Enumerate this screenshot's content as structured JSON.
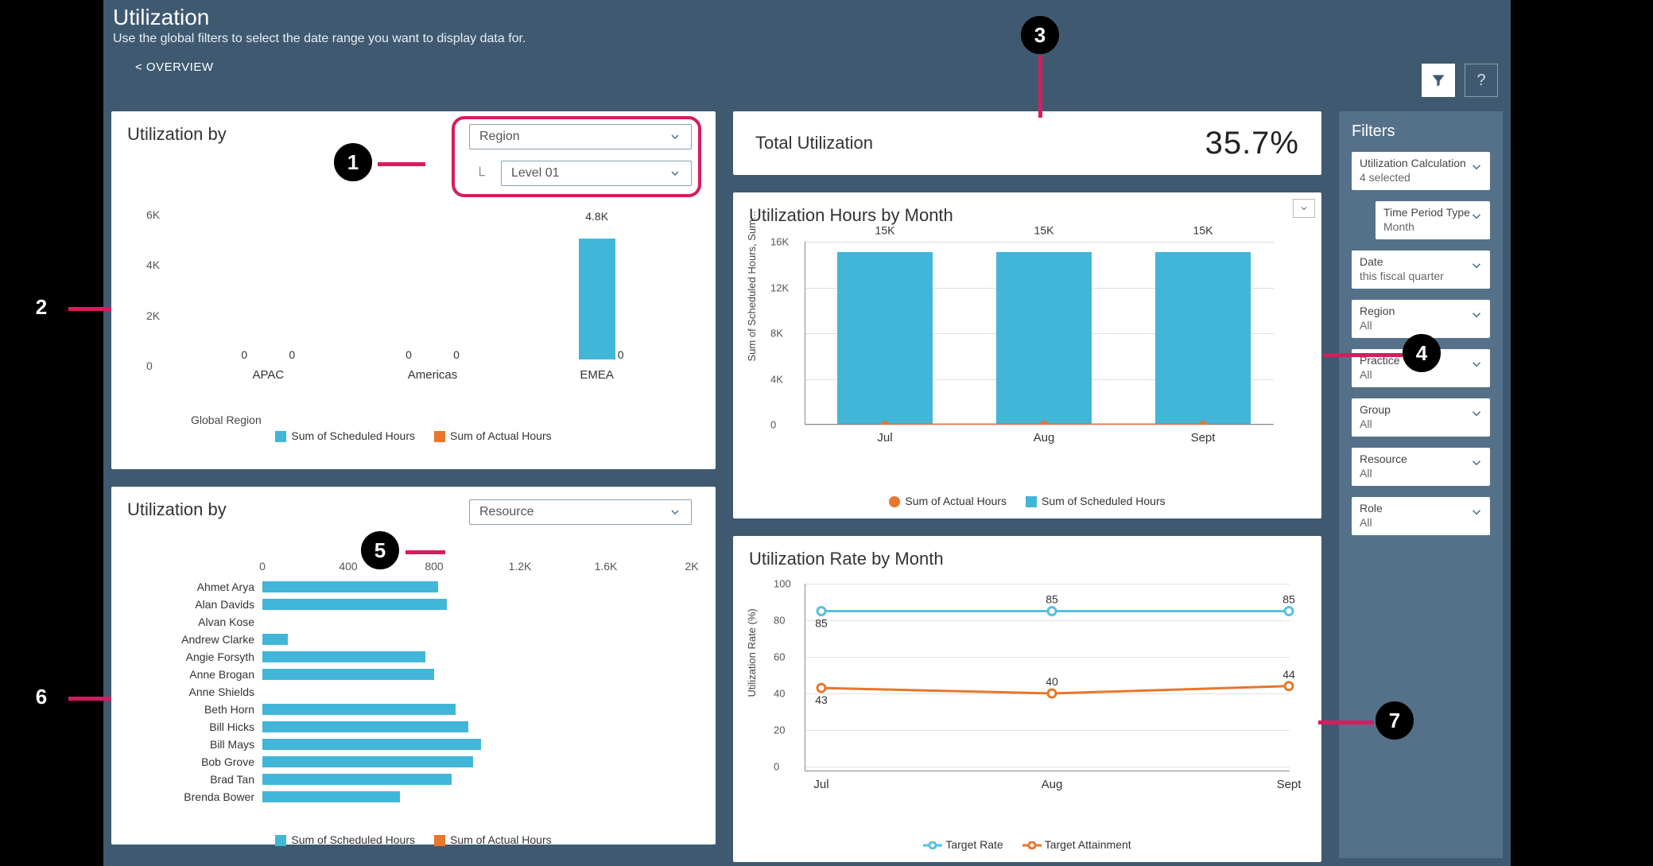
{
  "header": {
    "title": "Utilization",
    "subtitle": "Use the global filters to select the date range you want to display data for.",
    "overview_link": "< OVERVIEW"
  },
  "colors": {
    "dashboard_bg": "#3f5a70",
    "filter_panel_bg": "#55718a",
    "card_bg": "#ffffff",
    "series_scheduled": "#41b6d9",
    "series_actual": "#e8762c",
    "highlight": "#d81b60",
    "grid": "#dddddd",
    "axis": "#888888",
    "text": "#333333"
  },
  "region_card": {
    "title": "Utilization by",
    "dropdown_primary": "Region",
    "dropdown_secondary": "Level 01",
    "chart": {
      "type": "bar",
      "y_label_suffix": "K",
      "ylim": [
        0,
        6
      ],
      "ytick_step": 2,
      "categories": [
        "APAC",
        "Americas",
        "EMEA"
      ],
      "pairs_per_category": 2,
      "values_scheduled": [
        0,
        0,
        4.8
      ],
      "values_actual": [
        0,
        0,
        0
      ],
      "bar_label": "4.8K",
      "x_axis_label": "Global Region"
    },
    "legend": [
      "Sum of Scheduled Hours",
      "Sum of Actual Hours"
    ]
  },
  "resource_card": {
    "title": "Utilization by",
    "dropdown": "Resource",
    "chart": {
      "type": "hbar",
      "xlim": [
        0,
        2000
      ],
      "xticks": [
        0,
        400,
        800,
        "1.2K",
        "1.6K",
        "2K"
      ],
      "xtick_vals": [
        0,
        400,
        800,
        1200,
        1600,
        2000
      ],
      "rows": [
        {
          "name": "Ahmet Arya",
          "val": 820
        },
        {
          "name": "Alan Davids",
          "val": 860
        },
        {
          "name": "Alvan Kose",
          "val": 0
        },
        {
          "name": "Andrew Clarke",
          "val": 120
        },
        {
          "name": "Angie Forsyth",
          "val": 760
        },
        {
          "name": "Anne Brogan",
          "val": 800
        },
        {
          "name": "Anne Shields",
          "val": 0
        },
        {
          "name": "Beth Horn",
          "val": 900
        },
        {
          "name": "Bill Hicks",
          "val": 960
        },
        {
          "name": "Bill Mays",
          "val": 1020
        },
        {
          "name": "Bob Grove",
          "val": 980
        },
        {
          "name": "Brad Tan",
          "val": 880
        },
        {
          "name": "Brenda Bower",
          "val": 640
        }
      ]
    },
    "legend": [
      "Sum of Scheduled Hours",
      "Sum of Actual Hours"
    ]
  },
  "kpi": {
    "label": "Total Utilization",
    "value": "35.7%"
  },
  "monthly_card": {
    "title": "Utilization Hours by Month",
    "chart": {
      "type": "bar+line",
      "y_axis_label": "Sum of Scheduled Hours, Sum...",
      "ylim": [
        0,
        16
      ],
      "yticks": [
        "0",
        "4K",
        "8K",
        "12K",
        "16K"
      ],
      "ytick_vals": [
        0,
        4,
        8,
        12,
        16
      ],
      "categories": [
        "Jul",
        "Aug",
        "Sept"
      ],
      "bar_values": [
        15,
        15,
        15
      ],
      "bar_labels": [
        "15K",
        "15K",
        "15K"
      ],
      "line_values": [
        0,
        0,
        0
      ]
    },
    "legend": [
      "Sum of Actual Hours",
      "Sum of Scheduled Hours"
    ]
  },
  "rate_card": {
    "title": "Utilization Rate by Month",
    "chart": {
      "type": "line",
      "y_axis_label": "Utilization Rate (%)",
      "ylim": [
        0,
        100
      ],
      "ytick_step": 20,
      "categories": [
        "Jul",
        "Aug",
        "Sept"
      ],
      "target_rate": [
        85,
        85,
        85
      ],
      "target_attainment": [
        43,
        40,
        44
      ]
    },
    "legend": [
      "Target Rate",
      "Target Attainment"
    ]
  },
  "filters_panel": {
    "title": "Filters",
    "items": [
      {
        "title": "Utilization Calculation",
        "value": "4 selected",
        "indent": false
      },
      {
        "title": "Time Period Type",
        "value": "Month",
        "indent": true
      },
      {
        "title": "Date",
        "value": "this fiscal quarter",
        "indent": false
      },
      {
        "title": "Region",
        "value": "All",
        "indent": false
      },
      {
        "title": "Practice",
        "value": "All",
        "indent": false
      },
      {
        "title": "Group",
        "value": "All",
        "indent": false
      },
      {
        "title": "Resource",
        "value": "All",
        "indent": false
      },
      {
        "title": "Role",
        "value": "All",
        "indent": false
      }
    ]
  },
  "callouts": [
    "1",
    "2",
    "3",
    "4",
    "5",
    "6",
    "7"
  ]
}
